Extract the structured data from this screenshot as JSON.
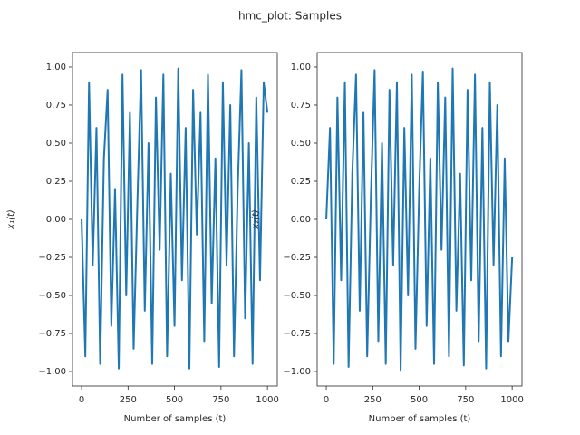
{
  "title": "hmc_plot: Samples",
  "chart_data": [
    {
      "type": "line",
      "xlabel": "Number of samples (t)",
      "ylabel": "x₁(t)",
      "x": [
        0,
        20,
        40,
        60,
        80,
        100,
        120,
        140,
        160,
        180,
        200,
        220,
        240,
        260,
        280,
        300,
        320,
        340,
        360,
        380,
        400,
        420,
        440,
        460,
        480,
        500,
        520,
        540,
        560,
        580,
        600,
        620,
        640,
        660,
        680,
        700,
        720,
        740,
        760,
        780,
        800,
        820,
        840,
        860,
        880,
        900,
        920,
        940,
        960,
        980,
        1000
      ],
      "series": [
        {
          "name": "x1",
          "color": "#1f77b4",
          "values": [
            0.0,
            -0.9,
            0.9,
            -0.3,
            0.6,
            -0.95,
            0.4,
            0.85,
            -0.7,
            0.2,
            -0.98,
            0.95,
            -0.5,
            0.7,
            -0.85,
            0.1,
            0.98,
            -0.6,
            0.5,
            -0.95,
            0.8,
            -0.2,
            0.95,
            -0.9,
            0.3,
            -0.7,
            0.99,
            -0.4,
            0.6,
            -0.98,
            0.85,
            -0.1,
            0.7,
            -0.8,
            0.95,
            -0.55,
            0.4,
            -0.97,
            0.9,
            -0.3,
            0.75,
            -0.9,
            0.2,
            0.98,
            -0.65,
            0.5,
            -0.95,
            0.8,
            -0.4,
            0.9,
            0.7
          ]
        }
      ],
      "xlim": [
        -49,
        1053
      ],
      "ylim": [
        -1.095,
        1.095
      ],
      "xticks": [
        0,
        250,
        500,
        750,
        1000
      ],
      "yticks": [
        {
          "value": -1,
          "label": "−1.00"
        },
        {
          "value": -0.75,
          "label": "−0.75"
        },
        {
          "value": -0.5,
          "label": "−0.50"
        },
        {
          "value": -0.25,
          "label": "−0.25"
        },
        {
          "value": 0,
          "label": "0.00"
        },
        {
          "value": 0.25,
          "label": "0.25"
        },
        {
          "value": 0.5,
          "label": "0.50"
        },
        {
          "value": 0.75,
          "label": "0.75"
        },
        {
          "value": 1,
          "label": "1.00"
        }
      ],
      "grid": false
    },
    {
      "type": "line",
      "xlabel": "Number of samples (t)",
      "ylabel": "x₂(t)",
      "x": [
        0,
        20,
        40,
        60,
        80,
        100,
        120,
        140,
        160,
        180,
        200,
        220,
        240,
        260,
        280,
        300,
        320,
        340,
        360,
        380,
        400,
        420,
        440,
        460,
        480,
        500,
        520,
        540,
        560,
        580,
        600,
        620,
        640,
        660,
        680,
        700,
        720,
        740,
        760,
        780,
        800,
        820,
        840,
        860,
        880,
        900,
        920,
        940,
        960,
        980,
        1000
      ],
      "series": [
        {
          "name": "x2",
          "color": "#1f77b4",
          "values": [
            0.0,
            0.6,
            -0.95,
            0.8,
            -0.4,
            0.9,
            -0.97,
            0.3,
            0.95,
            -0.6,
            0.7,
            -0.9,
            0.15,
            0.98,
            -0.8,
            0.5,
            -0.95,
            0.85,
            -0.3,
            0.9,
            -0.99,
            0.6,
            -0.5,
            0.95,
            -0.85,
            0.2,
            0.97,
            -0.7,
            0.4,
            -0.95,
            0.9,
            -0.2,
            0.8,
            -0.9,
            0.99,
            -0.6,
            0.3,
            -0.96,
            0.85,
            -0.4,
            0.95,
            -0.8,
            0.6,
            -0.98,
            0.9,
            -0.3,
            0.75,
            -0.9,
            0.4,
            -0.8,
            -0.25
          ]
        }
      ],
      "xlim": [
        -49,
        1053
      ],
      "ylim": [
        -1.095,
        1.095
      ],
      "xticks": [
        0,
        250,
        500,
        750,
        1000
      ],
      "yticks": [
        {
          "value": -1,
          "label": "−1.00"
        },
        {
          "value": -0.75,
          "label": "−0.75"
        },
        {
          "value": -0.5,
          "label": "−0.50"
        },
        {
          "value": -0.25,
          "label": "−0.25"
        },
        {
          "value": 0,
          "label": "0.00"
        },
        {
          "value": 0.25,
          "label": "0.25"
        },
        {
          "value": 0.5,
          "label": "0.50"
        },
        {
          "value": 0.75,
          "label": "0.75"
        },
        {
          "value": 1,
          "label": "1.00"
        }
      ],
      "grid": false
    }
  ]
}
